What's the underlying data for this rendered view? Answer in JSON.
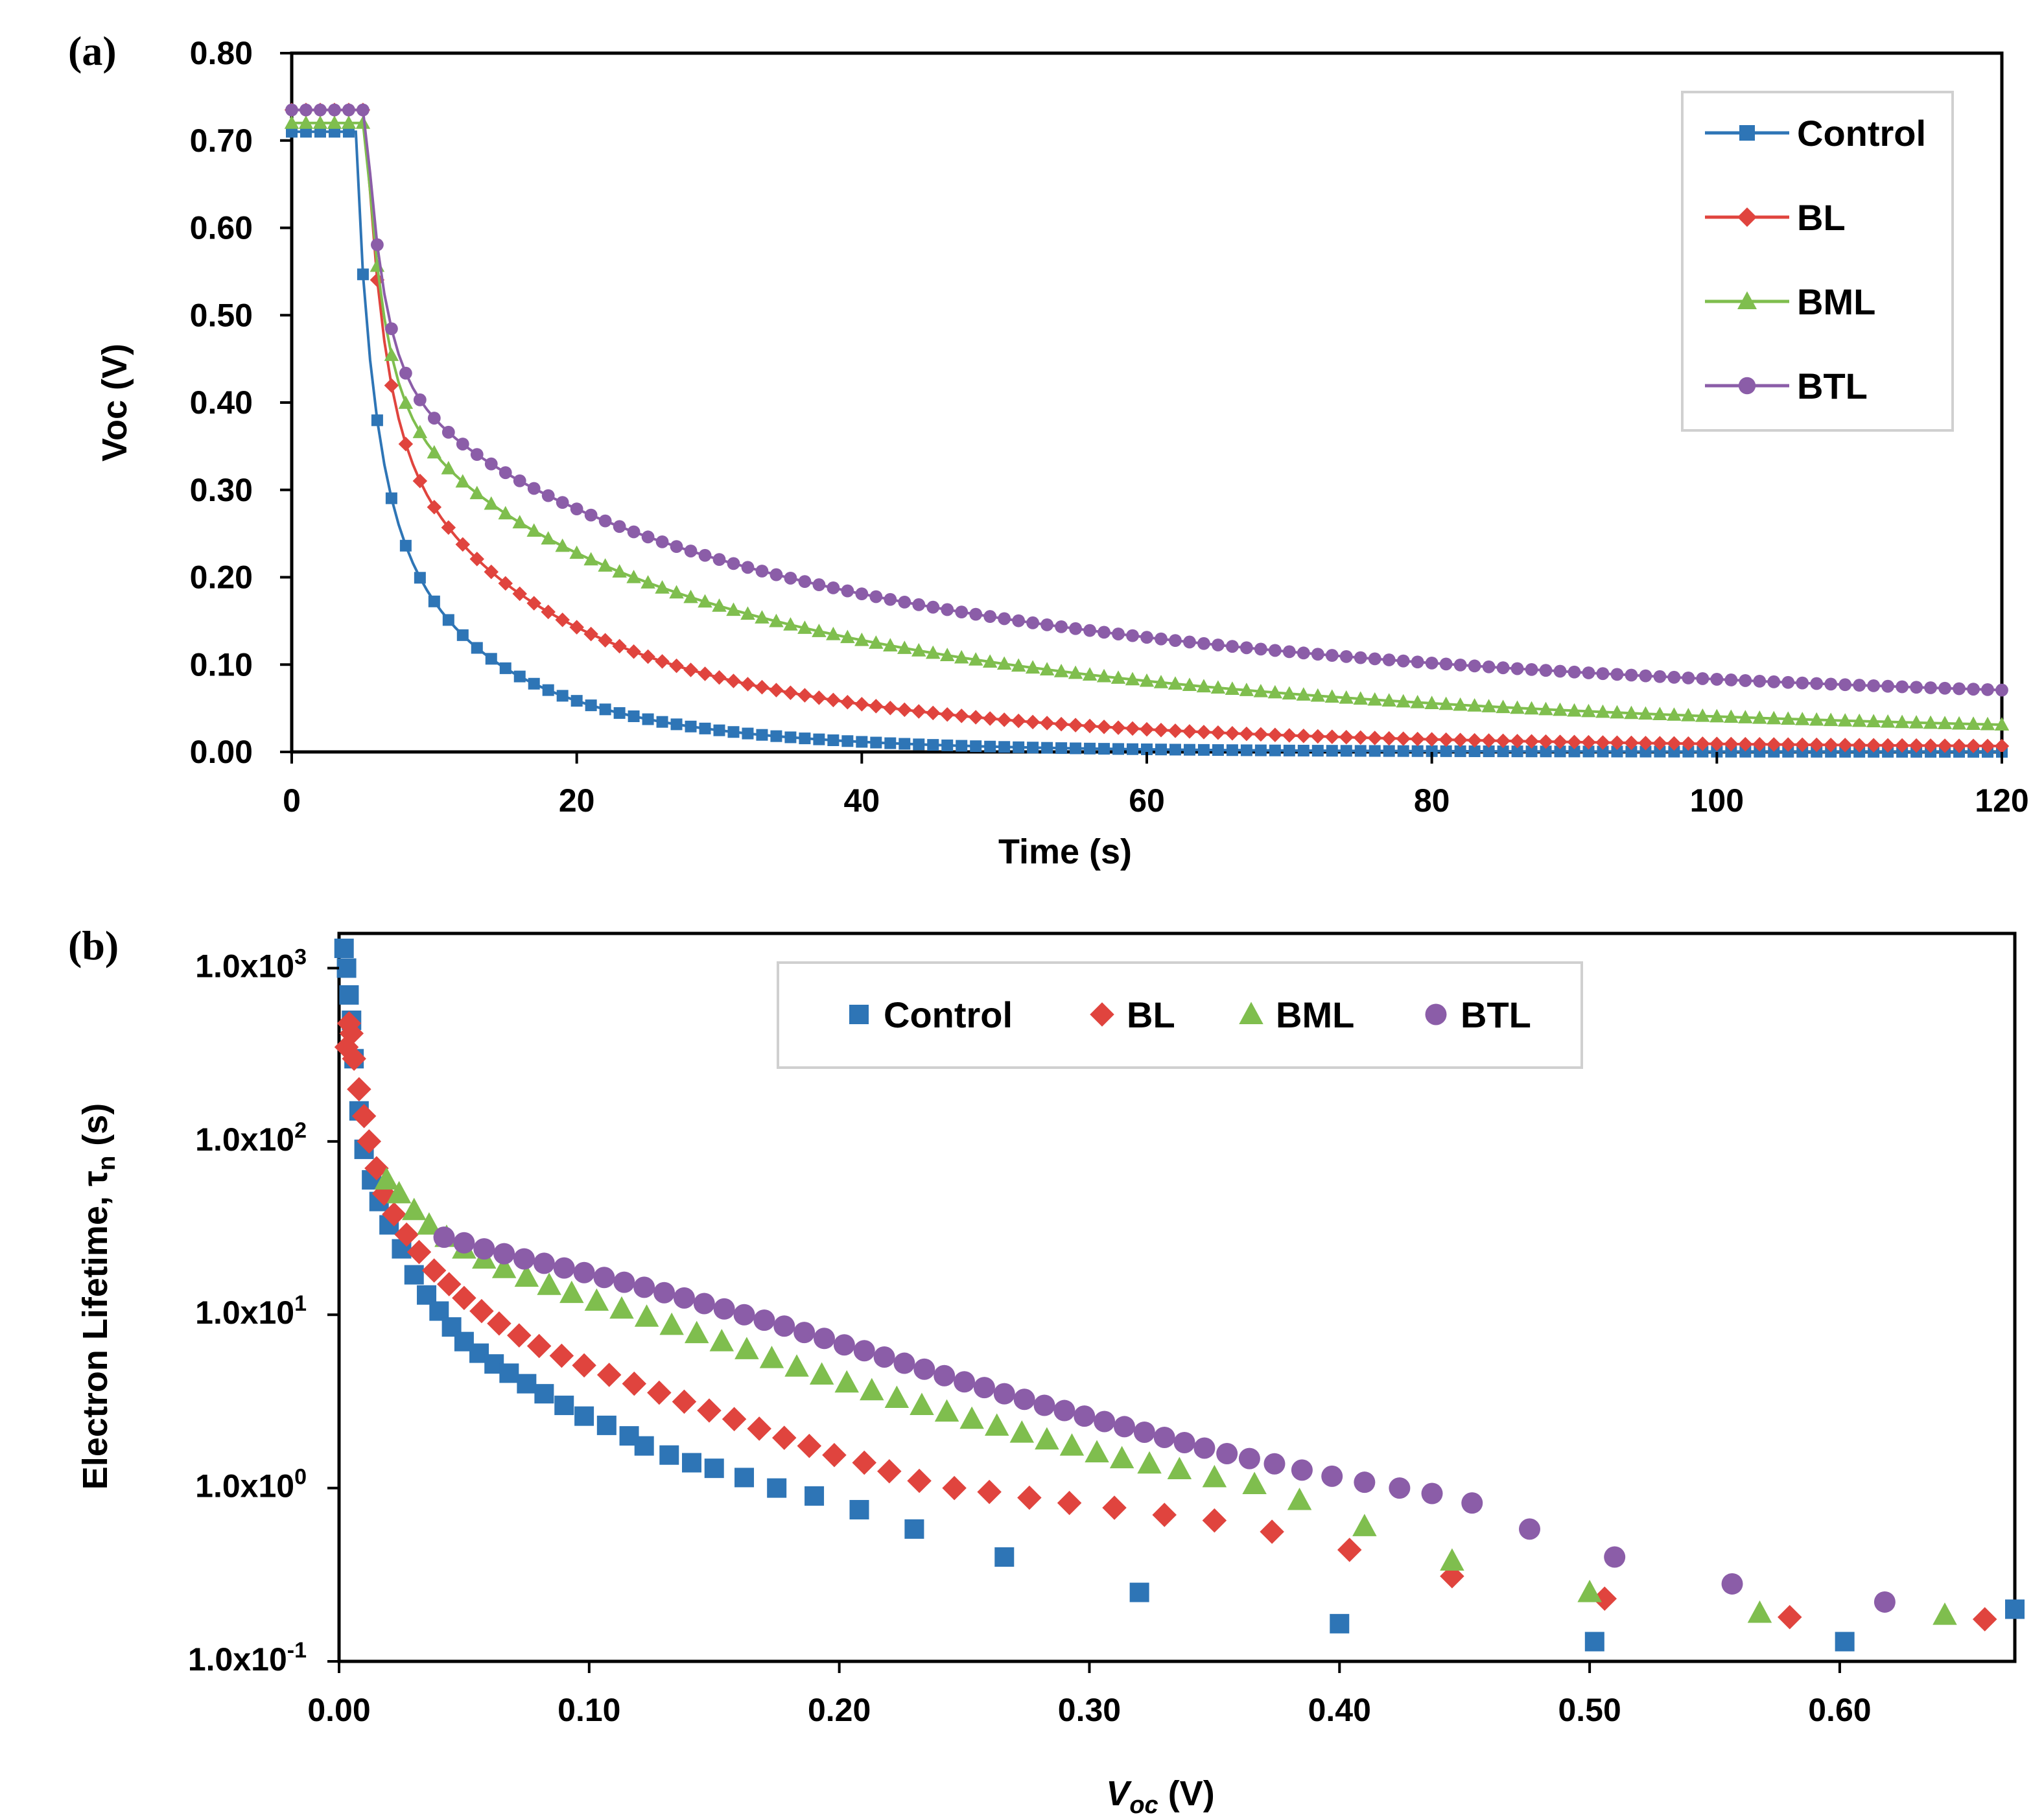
{
  "chart_data": [
    {
      "panel_label": "(a)",
      "type": "line",
      "xlabel": "Time (s)",
      "ylabel": "Voc (V)",
      "xlim": [
        0,
        120
      ],
      "ylim": [
        0,
        0.8
      ],
      "xticks": [
        "0",
        "20",
        "40",
        "60",
        "80",
        "100",
        "120"
      ],
      "yticks": [
        "0.00",
        "0.10",
        "0.20",
        "0.30",
        "0.40",
        "0.50",
        "0.60",
        "0.70",
        "0.80"
      ],
      "legend_position": "top-right",
      "series": [
        {
          "name": "Control",
          "color": "#2E75B6",
          "marker": "square",
          "v0": 0.71,
          "t0": 4.5,
          "tau": 5.5,
          "drop_time": 5.9,
          "floor": 0.0
        },
        {
          "name": "BL",
          "color": "#E0443E",
          "marker": "diamond",
          "v0": 0.735,
          "t0": 5.2,
          "tau": 11.0,
          "drop_time": 6.7,
          "floor": 0.004
        },
        {
          "name": "BML",
          "color": "#7FBE4E",
          "marker": "triangle",
          "v0": 0.72,
          "t0": 5.2,
          "tau": 22.0,
          "drop_time": 6.7,
          "floor": 0.012
        },
        {
          "name": "BTL",
          "color": "#8B5DA8",
          "marker": "circle",
          "v0": 0.735,
          "t0": 5.2,
          "tau": 28.0,
          "drop_time": 6.7,
          "floor": 0.04
        }
      ]
    },
    {
      "panel_label": "(b)",
      "type": "scatter",
      "xlabel_main": "V",
      "xlabel_sub": "oc",
      "xlabel_unit": " (V)",
      "ylabel_main": "Electron Lifetime, τ",
      "ylabel_sub": "n",
      "ylabel_unit": " (s)",
      "y_scale": "log",
      "xlim": [
        0,
        0.67
      ],
      "ylim_log10": [
        -1,
        3.2
      ],
      "xticks": [
        "0.00",
        "0.10",
        "0.20",
        "0.30",
        "0.40",
        "0.50",
        "0.60"
      ],
      "yticks": [
        {
          "base": "1.0x10",
          "exp": "-1",
          "log10": -1
        },
        {
          "base": "1.0x10",
          "exp": "0",
          "log10": 0
        },
        {
          "base": "1.0x10",
          "exp": "1",
          "log10": 1
        },
        {
          "base": "1.0x10",
          "exp": "2",
          "log10": 2
        },
        {
          "base": "1.0x10",
          "exp": "3",
          "log10": 3
        }
      ],
      "legend_position": "top-center",
      "series": [
        {
          "name": "Control",
          "color": "#2E75B6",
          "marker": "square",
          "points": [
            [
              0.002,
              1300
            ],
            [
              0.003,
              1000
            ],
            [
              0.004,
              700
            ],
            [
              0.005,
              500
            ],
            [
              0.006,
              300
            ],
            [
              0.008,
              150
            ],
            [
              0.01,
              90
            ],
            [
              0.013,
              60
            ],
            [
              0.016,
              45
            ],
            [
              0.02,
              33
            ],
            [
              0.025,
              24
            ],
            [
              0.03,
              17
            ],
            [
              0.035,
              13
            ],
            [
              0.04,
              10.5
            ],
            [
              0.045,
              8.5
            ],
            [
              0.05,
              7
            ],
            [
              0.056,
              6
            ],
            [
              0.062,
              5.2
            ],
            [
              0.068,
              4.6
            ],
            [
              0.075,
              4
            ],
            [
              0.082,
              3.5
            ],
            [
              0.09,
              3
            ],
            [
              0.098,
              2.6
            ],
            [
              0.107,
              2.3
            ],
            [
              0.116,
              2
            ],
            [
              0.122,
              1.75
            ],
            [
              0.132,
              1.55
            ],
            [
              0.141,
              1.4
            ],
            [
              0.15,
              1.3
            ],
            [
              0.162,
              1.15
            ],
            [
              0.175,
              1.0
            ],
            [
              0.19,
              0.9
            ],
            [
              0.208,
              0.75
            ],
            [
              0.23,
              0.58
            ],
            [
              0.266,
              0.4
            ],
            [
              0.32,
              0.25
            ],
            [
              0.4,
              0.165
            ],
            [
              0.502,
              0.13
            ],
            [
              0.602,
              0.13
            ],
            [
              0.67,
              0.2
            ]
          ]
        },
        {
          "name": "BL",
          "color": "#E0443E",
          "marker": "diamond",
          "points": [
            [
              0.003,
              350
            ],
            [
              0.004,
              480
            ],
            [
              0.005,
              420
            ],
            [
              0.006,
              300
            ],
            [
              0.008,
              200
            ],
            [
              0.01,
              140
            ],
            [
              0.012,
              100
            ],
            [
              0.015,
              70
            ],
            [
              0.018,
              50
            ],
            [
              0.022,
              38
            ],
            [
              0.027,
              29
            ],
            [
              0.032,
              23
            ],
            [
              0.038,
              18
            ],
            [
              0.044,
              15
            ],
            [
              0.05,
              12.5
            ],
            [
              0.057,
              10.5
            ],
            [
              0.064,
              8.9
            ],
            [
              0.072,
              7.6
            ],
            [
              0.08,
              6.6
            ],
            [
              0.089,
              5.8
            ],
            [
              0.098,
              5.1
            ],
            [
              0.108,
              4.5
            ],
            [
              0.118,
              4
            ],
            [
              0.128,
              3.55
            ],
            [
              0.138,
              3.15
            ],
            [
              0.148,
              2.8
            ],
            [
              0.158,
              2.5
            ],
            [
              0.168,
              2.2
            ],
            [
              0.178,
              1.95
            ],
            [
              0.188,
              1.75
            ],
            [
              0.198,
              1.55
            ],
            [
              0.21,
              1.4
            ],
            [
              0.22,
              1.25
            ],
            [
              0.232,
              1.1
            ],
            [
              0.246,
              1.0
            ],
            [
              0.26,
              0.95
            ],
            [
              0.276,
              0.88
            ],
            [
              0.292,
              0.82
            ],
            [
              0.31,
              0.77
            ],
            [
              0.33,
              0.7
            ],
            [
              0.35,
              0.65
            ],
            [
              0.373,
              0.56
            ],
            [
              0.404,
              0.44
            ],
            [
              0.445,
              0.31
            ],
            [
              0.506,
              0.23
            ],
            [
              0.58,
              0.18
            ],
            [
              0.658,
              0.175
            ]
          ]
        },
        {
          "name": "BML",
          "color": "#7FBE4E",
          "marker": "triangle",
          "points": [
            [
              0.019,
              60
            ],
            [
              0.024,
              50
            ],
            [
              0.03,
              40
            ],
            [
              0.036,
              33
            ],
            [
              0.043,
              28
            ],
            [
              0.05,
              24
            ],
            [
              0.058,
              21
            ],
            [
              0.066,
              18.5
            ],
            [
              0.075,
              16.5
            ],
            [
              0.084,
              14.8
            ],
            [
              0.093,
              13.3
            ],
            [
              0.103,
              12
            ],
            [
              0.113,
              10.8
            ],
            [
              0.123,
              9.7
            ],
            [
              0.133,
              8.7
            ],
            [
              0.143,
              7.8
            ],
            [
              0.153,
              7
            ],
            [
              0.163,
              6.3
            ],
            [
              0.173,
              5.6
            ],
            [
              0.183,
              5
            ],
            [
              0.193,
              4.5
            ],
            [
              0.203,
              4.05
            ],
            [
              0.213,
              3.65
            ],
            [
              0.223,
              3.3
            ],
            [
              0.233,
              3.0
            ],
            [
              0.243,
              2.75
            ],
            [
              0.253,
              2.5
            ],
            [
              0.263,
              2.28
            ],
            [
              0.273,
              2.08
            ],
            [
              0.283,
              1.9
            ],
            [
              0.293,
              1.75
            ],
            [
              0.303,
              1.6
            ],
            [
              0.313,
              1.48
            ],
            [
              0.324,
              1.38
            ],
            [
              0.336,
              1.28
            ],
            [
              0.35,
              1.15
            ],
            [
              0.366,
              1.05
            ],
            [
              0.384,
              0.85
            ],
            [
              0.41,
              0.6
            ],
            [
              0.445,
              0.38
            ],
            [
              0.5,
              0.25
            ],
            [
              0.568,
              0.19
            ],
            [
              0.642,
              0.185
            ]
          ]
        },
        {
          "name": "BTL",
          "color": "#8B5DA8",
          "marker": "circle",
          "points": [
            [
              0.042,
              28
            ],
            [
              0.05,
              26
            ],
            [
              0.058,
              24
            ],
            [
              0.066,
              22.5
            ],
            [
              0.074,
              21
            ],
            [
              0.082,
              19.8
            ],
            [
              0.09,
              18.6
            ],
            [
              0.098,
              17.5
            ],
            [
              0.106,
              16.4
            ],
            [
              0.114,
              15.4
            ],
            [
              0.122,
              14.4
            ],
            [
              0.13,
              13.4
            ],
            [
              0.138,
              12.5
            ],
            [
              0.146,
              11.6
            ],
            [
              0.154,
              10.8
            ],
            [
              0.162,
              10
            ],
            [
              0.17,
              9.3
            ],
            [
              0.178,
              8.6
            ],
            [
              0.186,
              7.9
            ],
            [
              0.194,
              7.3
            ],
            [
              0.202,
              6.7
            ],
            [
              0.21,
              6.2
            ],
            [
              0.218,
              5.7
            ],
            [
              0.226,
              5.25
            ],
            [
              0.234,
              4.85
            ],
            [
              0.242,
              4.45
            ],
            [
              0.25,
              4.1
            ],
            [
              0.258,
              3.8
            ],
            [
              0.266,
              3.5
            ],
            [
              0.274,
              3.25
            ],
            [
              0.282,
              3.0
            ],
            [
              0.29,
              2.8
            ],
            [
              0.298,
              2.6
            ],
            [
              0.306,
              2.42
            ],
            [
              0.314,
              2.26
            ],
            [
              0.322,
              2.1
            ],
            [
              0.33,
              1.96
            ],
            [
              0.338,
              1.83
            ],
            [
              0.346,
              1.7
            ],
            [
              0.355,
              1.58
            ],
            [
              0.364,
              1.48
            ],
            [
              0.374,
              1.38
            ],
            [
              0.385,
              1.27
            ],
            [
              0.397,
              1.17
            ],
            [
              0.41,
              1.08
            ],
            [
              0.424,
              1.0
            ],
            [
              0.437,
              0.93
            ],
            [
              0.453,
              0.82
            ],
            [
              0.476,
              0.58
            ],
            [
              0.51,
              0.4
            ],
            [
              0.557,
              0.28
            ],
            [
              0.618,
              0.22
            ]
          ]
        }
      ]
    }
  ]
}
